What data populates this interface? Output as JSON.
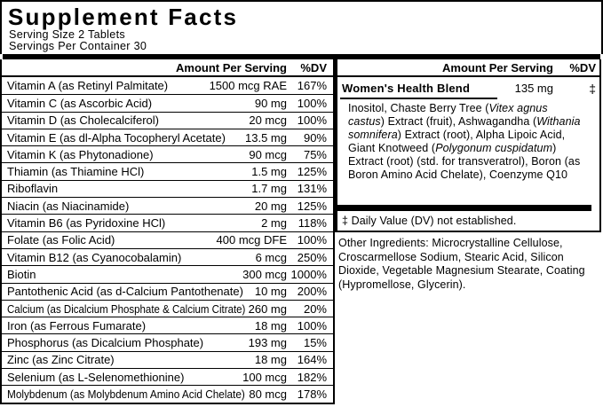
{
  "title": "Supplement Facts",
  "serving_size": "Serving Size 2 Tablets",
  "servings_per_container": "Servings Per Container 30",
  "left_table": {
    "headers": {
      "amount": "Amount Per Serving",
      "dv": "%DV"
    },
    "rows": [
      {
        "name": "Vitamin A (as Retinyl Palmitate)",
        "amount": "1500 mcg RAE",
        "dv": "167%"
      },
      {
        "name": "Vitamin C (as Ascorbic Acid)",
        "amount": "90 mg",
        "dv": "100%"
      },
      {
        "name": "Vitamin D (as Cholecalciferol)",
        "amount": "20 mcg",
        "dv": "100%"
      },
      {
        "name": "Vitamin E (as dl-Alpha Tocopheryl Acetate)",
        "amount": "13.5 mg",
        "dv": "90%"
      },
      {
        "name": "Vitamin K (as Phytonadione)",
        "amount": "90 mcg",
        "dv": "75%"
      },
      {
        "name": "Thiamin (as Thiamine HCl)",
        "amount": "1.5 mg",
        "dv": "125%"
      },
      {
        "name": "Riboflavin",
        "amount": "1.7 mg",
        "dv": "131%"
      },
      {
        "name": "Niacin (as Niacinamide)",
        "amount": "20 mg",
        "dv": "125%"
      },
      {
        "name": "Vitamin B6 (as Pyridoxine HCl)",
        "amount": "2 mg",
        "dv": "118%"
      },
      {
        "name": "Folate (as Folic Acid)",
        "amount": "400 mcg DFE",
        "dv": "100%"
      },
      {
        "name": "Vitamin B12 (as Cyanocobalamin)",
        "amount": "6 mcg",
        "dv": "250%"
      },
      {
        "name": "Biotin",
        "amount": "300 mcg",
        "dv": "1000%"
      },
      {
        "name": "Pantothenic Acid (as d-Calcium Pantothenate)",
        "amount": "10 mg",
        "dv": "200%"
      },
      {
        "name": "Calcium (as Dicalcium Phosphate & Calcium Citrate)",
        "amount": "260 mg",
        "dv": "20%"
      },
      {
        "name": "Iron (as Ferrous Fumarate)",
        "amount": "18 mg",
        "dv": "100%"
      },
      {
        "name": "Phosphorus (as Dicalcium Phosphate)",
        "amount": "193 mg",
        "dv": "15%"
      },
      {
        "name": "Zinc (as Zinc Citrate)",
        "amount": "18 mg",
        "dv": "164%"
      },
      {
        "name": "Selenium (as L-Selenomethionine)",
        "amount": "100 mcg",
        "dv": "182%"
      },
      {
        "name": "Molybdenum (as Molybdenum Amino Acid Chelate)",
        "amount": "80 mcg",
        "dv": "178%"
      }
    ]
  },
  "right_panel": {
    "headers": {
      "amount": "Amount Per Serving",
      "dv": "%DV"
    },
    "blend": {
      "name": "Women's Health Blend",
      "amount": "135 mg",
      "dv": "‡",
      "description_segments": [
        {
          "text": "Inositol, Chaste Berry Tree (",
          "italic": false
        },
        {
          "text": "Vitex agnus castus",
          "italic": true
        },
        {
          "text": ") Extract (fruit), Ashwagandha (",
          "italic": false
        },
        {
          "text": "Withania somnifera",
          "italic": true
        },
        {
          "text": ") Extract (root), Alpha Lipoic Acid, Giant Knotweed (",
          "italic": false
        },
        {
          "text": "Polygonum cuspidatum",
          "italic": true
        },
        {
          "text": ") Extract (root) (std. for transveratrol), Boron (as Boron Amino Acid Chelate), Coenzyme Q10",
          "italic": false
        }
      ]
    },
    "footnote": "‡ Daily Value (DV) not established."
  },
  "other_ingredients": "Other Ingredients: Microcrystalline Cellulose, Croscarmellose Sodium, Stearic Acid, Silicon Dioxide, Vegetable Magnesium Stearate, Coating (Hypromellose, Glycerin).",
  "colors": {
    "background": "#ffffff",
    "text": "#000000",
    "border": "#000000"
  }
}
